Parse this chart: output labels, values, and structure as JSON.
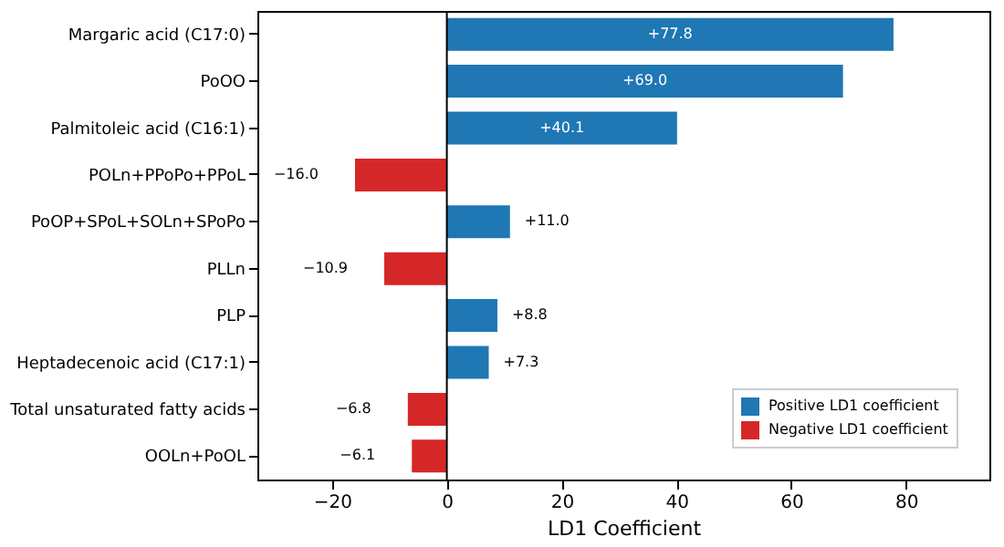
{
  "chart_data": {
    "type": "bar",
    "orientation": "horizontal",
    "xlabel": "LD1 Coefficient",
    "categories": [
      "Margaric acid (C17:0)",
      "PoOO",
      "Palmitoleic acid (C16:1)",
      "POLn+PPoPo+PPoL",
      "PoOP+SPoL+SOLn+SPoPo",
      "PLLn",
      "PLP",
      "Heptadecenoic acid (C17:1)",
      "Total unsaturated fatty acids",
      "OOLn+PoOL"
    ],
    "series": [
      {
        "name": "Positive LD1 coefficient",
        "color": "#1f77b4",
        "values": [
          77.8,
          69.0,
          40.1,
          null,
          11.0,
          null,
          8.8,
          7.3,
          null,
          null
        ],
        "value_labels": [
          "+77.8",
          "+69.0",
          "+40.1",
          null,
          "+11.0",
          null,
          "+8.8",
          "+7.3",
          null,
          null
        ]
      },
      {
        "name": "Negative LD1 coefficient",
        "color": "#d62728",
        "values": [
          null,
          null,
          null,
          -16.0,
          null,
          -10.9,
          null,
          null,
          -6.8,
          -6.1
        ],
        "value_labels": [
          null,
          null,
          null,
          "−16.0",
          null,
          "−10.9",
          null,
          null,
          "−6.8",
          "−6.1"
        ]
      }
    ],
    "xlim": [
      -33,
      94.5
    ],
    "xticks": [
      -20,
      0,
      20,
      40,
      60,
      80
    ],
    "ref_lines": [
      {
        "axis": "x",
        "value": 0,
        "color": "#000000"
      }
    ],
    "grid": false,
    "legend": "bottom right"
  }
}
